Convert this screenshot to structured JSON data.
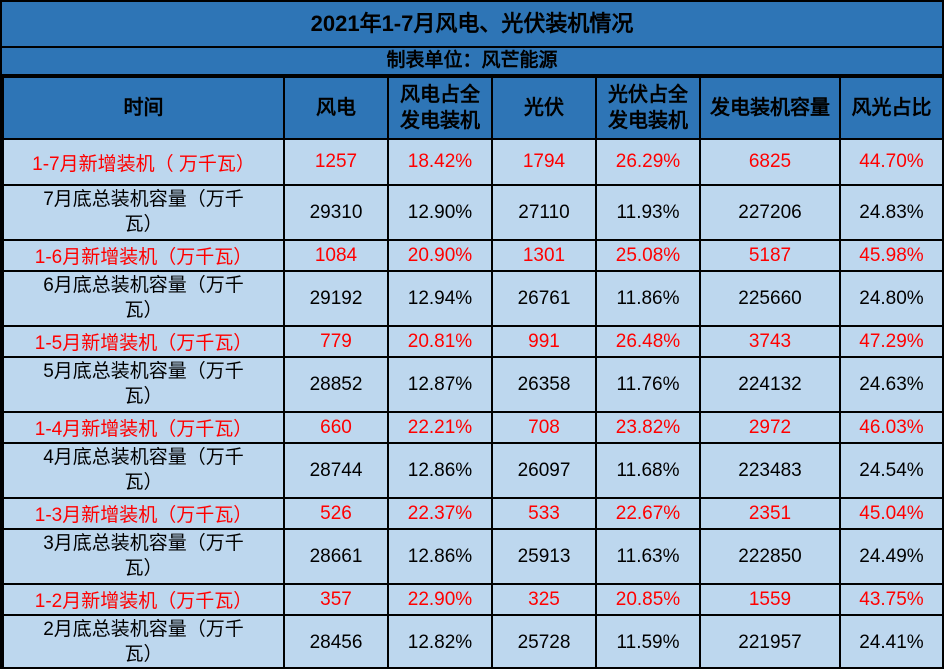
{
  "page": {
    "title": "2021年1-7月风电、光伏装机情况",
    "subtitle": "制表单位：风芒能源"
  },
  "table": {
    "columns": [
      "时间",
      "风电",
      "风电占全发电装机",
      "光伏",
      "光伏占全发电装机",
      "发电装机容量",
      "风光占比"
    ],
    "rows": [
      {
        "type": "new",
        "label": "1-7月新增装机（ 万千瓦）",
        "values": [
          "1257",
          "18.42%",
          "1794",
          "26.29%",
          "6825",
          "44.70%"
        ]
      },
      {
        "type": "total",
        "label": "7月底总装机容量（万千瓦）",
        "values": [
          "29310",
          "12.90%",
          "27110",
          "11.93%",
          "227206",
          "24.83%"
        ]
      },
      {
        "type": "new",
        "label": "1-6月新增装机（万千瓦）",
        "values": [
          "1084",
          "20.90%",
          "1301",
          "25.08%",
          "5187",
          "45.98%"
        ]
      },
      {
        "type": "total",
        "label": "6月底总装机容量（万千瓦）",
        "values": [
          "29192",
          "12.94%",
          "26761",
          "11.86%",
          "225660",
          "24.80%"
        ]
      },
      {
        "type": "new",
        "label": "1-5月新增装机（万千瓦）",
        "values": [
          "779",
          "20.81%",
          "991",
          "26.48%",
          "3743",
          "47.29%"
        ]
      },
      {
        "type": "total",
        "label": "5月底总装机容量（万千瓦）",
        "values": [
          "28852",
          "12.87%",
          "26358",
          "11.76%",
          "224132",
          "24.63%"
        ]
      },
      {
        "type": "new",
        "label": "1-4月新增装机（万千瓦）",
        "values": [
          "660",
          "22.21%",
          "708",
          "23.82%",
          "2972",
          "46.03%"
        ]
      },
      {
        "type": "total",
        "label": "4月底总装机容量（万千瓦）",
        "values": [
          "28744",
          "12.86%",
          "26097",
          "11.68%",
          "223483",
          "24.54%"
        ]
      },
      {
        "type": "new",
        "label": "1-3月新增装机（万千瓦）",
        "values": [
          "526",
          "22.37%",
          "533",
          "22.67%",
          "2351",
          "45.04%"
        ]
      },
      {
        "type": "total",
        "label": "3月底总装机容量（万千瓦）",
        "values": [
          "28661",
          "12.86%",
          "25913",
          "11.63%",
          "222850",
          "24.49%"
        ]
      },
      {
        "type": "new",
        "label": "1-2月新增装机（万千瓦）",
        "values": [
          "357",
          "22.90%",
          "325",
          "20.85%",
          "1559",
          "43.75%"
        ]
      },
      {
        "type": "total",
        "label": "2月底总装机容量（万千瓦）",
        "values": [
          "28456",
          "12.82%",
          "25728",
          "11.59%",
          "221957",
          "24.41%"
        ]
      }
    ],
    "colors": {
      "header_bg": "#2E75B6",
      "body_bg": "#BDD7EE",
      "highlight_text": "#FF0000",
      "normal_text": "#000000",
      "border": "#000000"
    }
  }
}
